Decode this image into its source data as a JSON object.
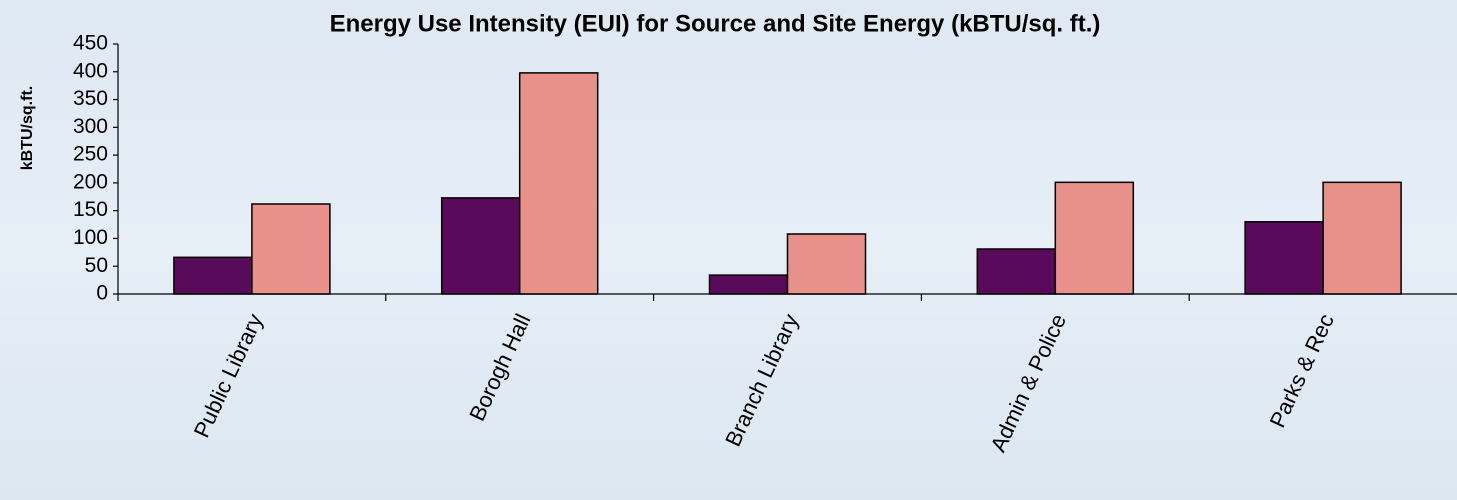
{
  "chart_data": {
    "type": "bar",
    "title": "Energy Use Intensity (EUI) for Source and Site Energy (kBTU/sq. ft.)",
    "y_label": "kBTU/sq.ft.",
    "categories": [
      "Public Library",
      "Borogh Hall",
      "Branch Library",
      "Admin & Police",
      "Parks & Rec"
    ],
    "series": [
      {
        "color": "#5a0a5a",
        "values": [
          66,
          173,
          34,
          81,
          130
        ]
      },
      {
        "color": "#e8908a",
        "values": [
          162,
          398,
          108,
          201,
          201
        ]
      }
    ],
    "ylim": [
      0,
      450
    ],
    "yticks": [
      0,
      50,
      100,
      150,
      200,
      250,
      300,
      350,
      400,
      450
    ],
    "grid": false
  }
}
